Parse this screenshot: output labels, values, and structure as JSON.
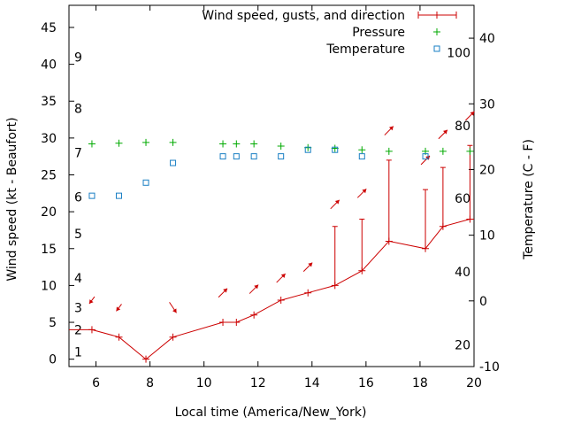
{
  "chart_data": {
    "type": "line",
    "xlabel": "Local time (America/New_York)",
    "ylabel_left": "Wind speed (kt - Beaufort)",
    "ylabel_right": "Temperature (C - F)",
    "xlim": [
      5,
      20
    ],
    "ylim_left": [
      -1,
      48
    ],
    "ylim_right": [
      -10,
      45
    ],
    "x_ticks": [
      6,
      8,
      10,
      12,
      14,
      16,
      18,
      20
    ],
    "y_left_ticks": [
      0,
      5,
      10,
      15,
      20,
      25,
      30,
      35,
      40,
      45
    ],
    "y_right_ticks": [
      -10,
      0,
      10,
      20,
      30,
      40
    ],
    "beaufort_labels": [
      {
        "text": "1",
        "kt": 1.0
      },
      {
        "text": "2",
        "kt": 4.0
      },
      {
        "text": "3",
        "kt": 7.0
      },
      {
        "text": "4",
        "kt": 11.0
      },
      {
        "text": "5",
        "kt": 17.0
      },
      {
        "text": "6",
        "kt": 22.0
      },
      {
        "text": "7",
        "kt": 28.0
      },
      {
        "text": "8",
        "kt": 34.0
      },
      {
        "text": "9",
        "kt": 41.0
      }
    ],
    "fahrenheit_labels": [
      {
        "text": "20",
        "temp_c": -6.7
      },
      {
        "text": "40",
        "temp_c": 4.4
      },
      {
        "text": "60",
        "temp_c": 15.6
      },
      {
        "text": "80",
        "temp_c": 26.7
      },
      {
        "text": "100",
        "temp_c": 37.8
      }
    ],
    "legend_position": "top-right",
    "series": [
      {
        "name": "Wind speed, gusts, and direction",
        "color": "#cc0000",
        "x": [
          5.0,
          5.85,
          6.85,
          7.85,
          8.85,
          10.7,
          11.2,
          11.85,
          12.85,
          13.85,
          14.85,
          15.85,
          16.85,
          18.2,
          18.85,
          19.85,
          20.0
        ],
        "values": [
          4,
          4,
          3,
          0,
          3,
          5,
          5,
          6,
          8,
          9,
          10,
          12,
          16,
          15,
          18,
          19,
          19
        ],
        "gusts": [
          null,
          null,
          null,
          null,
          null,
          null,
          null,
          null,
          null,
          null,
          18,
          19,
          27,
          23,
          26,
          29,
          null
        ]
      },
      {
        "name": "Pressure",
        "color": "#00aa00",
        "marker": "plus",
        "x": [
          5.85,
          6.85,
          7.85,
          8.85,
          10.7,
          11.2,
          11.85,
          12.85,
          13.85,
          14.85,
          15.85,
          16.85,
          18.2,
          18.85,
          19.85
        ],
        "values": [
          29.2,
          29.3,
          29.4,
          29.4,
          29.2,
          29.2,
          29.2,
          28.9,
          28.7,
          28.6,
          28.4,
          28.2,
          28.2,
          28.2,
          28.2
        ]
      },
      {
        "name": "Temperature",
        "color": "#1a7fc4",
        "marker": "square",
        "x": [
          5.85,
          6.85,
          7.85,
          8.85,
          10.7,
          11.2,
          11.85,
          12.85,
          13.85,
          14.85,
          15.85,
          18.2
        ],
        "values": [
          16,
          16,
          18,
          21,
          22,
          22,
          22,
          22,
          23,
          23,
          22,
          22
        ]
      }
    ],
    "wind_arrows": [
      {
        "x": 5.85,
        "kt": 8,
        "dx": -6,
        "dy": 8
      },
      {
        "x": 6.85,
        "kt": 7,
        "dx": -6,
        "dy": 8
      },
      {
        "x": 8.85,
        "kt": 7,
        "dx": 8,
        "dy": 12
      },
      {
        "x": 10.7,
        "kt": 9,
        "dx": 10,
        "dy": -10
      },
      {
        "x": 11.85,
        "kt": 9.5,
        "dx": 10,
        "dy": -10
      },
      {
        "x": 12.85,
        "kt": 11,
        "dx": 10,
        "dy": -10
      },
      {
        "x": 13.85,
        "kt": 12.5,
        "dx": 10,
        "dy": -10
      },
      {
        "x": 14.85,
        "kt": 21,
        "dx": 10,
        "dy": -10
      },
      {
        "x": 15.85,
        "kt": 22.5,
        "dx": 10,
        "dy": -10
      },
      {
        "x": 16.85,
        "kt": 31,
        "dx": 10,
        "dy": -10
      },
      {
        "x": 18.2,
        "kt": 27,
        "dx": 10,
        "dy": -10
      },
      {
        "x": 18.85,
        "kt": 30.5,
        "dx": 10,
        "dy": -10
      },
      {
        "x": 19.85,
        "kt": 33,
        "dx": 10,
        "dy": -10
      }
    ]
  }
}
